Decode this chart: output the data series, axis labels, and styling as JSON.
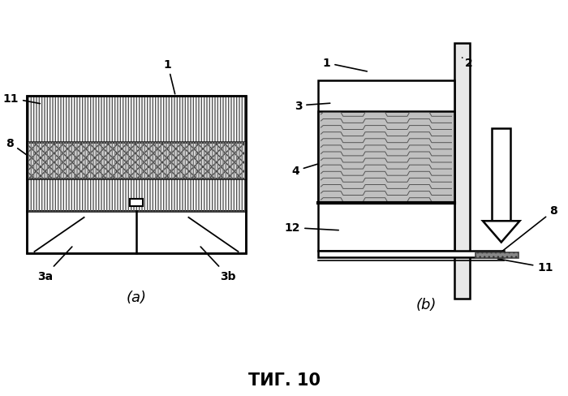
{
  "bg_color": "#ffffff",
  "line_color": "#000000",
  "fig_width": 7.0,
  "fig_height": 4.89,
  "subfig_a_label": "(a)",
  "subfig_b_label": "(b)",
  "title": "ΤИГ. 10"
}
